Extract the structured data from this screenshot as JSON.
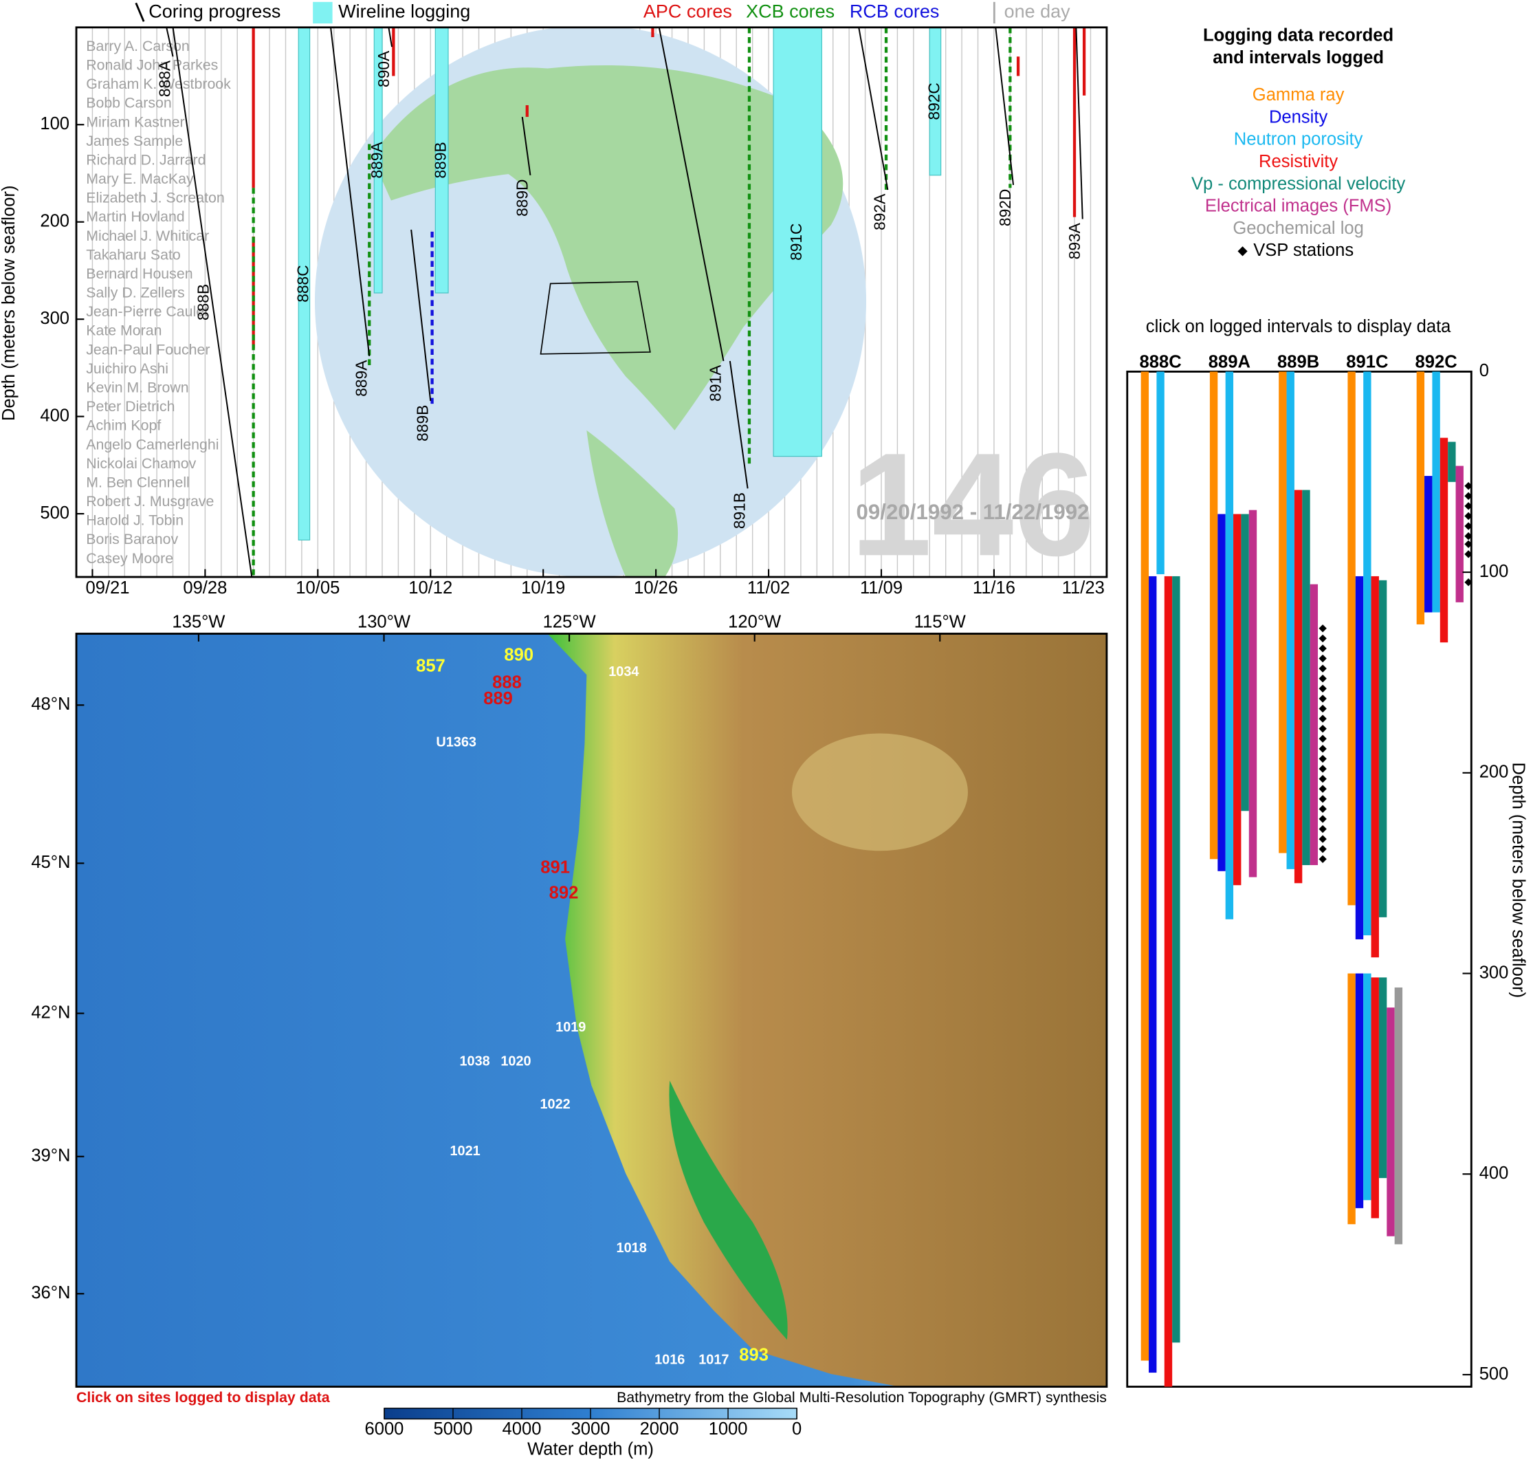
{
  "timeline": {
    "coring": {
      "name": "Coring progress",
      "color": "#000000",
      "holes": [
        {
          "label": "888A",
          "days": [
            5.6,
            6.0
          ],
          "depths": [
            0,
            30
          ]
        },
        {
          "label": "888B",
          "days": [
            6.0,
            10.9
          ],
          "depths": [
            0,
            565
          ]
        },
        {
          "label": "889A",
          "days": [
            15.8,
            18.2
          ],
          "depths": [
            0,
            338
          ]
        },
        {
          "label": "890A",
          "days": [
            19.4,
            19.6
          ],
          "depths": [
            0,
            20
          ]
        },
        {
          "label": "889B",
          "days": [
            20.8,
            22.0
          ],
          "depths": [
            208,
            384
          ]
        },
        {
          "label": "889D",
          "days": [
            27.7,
            28.2
          ],
          "depths": [
            92,
            152
          ]
        },
        {
          "label": "891A",
          "days": [
            36.2,
            40.2
          ],
          "depths": [
            0,
            343
          ]
        },
        {
          "label": "891B",
          "days": [
            40.6,
            41.7
          ],
          "depths": [
            343,
            474
          ]
        },
        {
          "label": "892A",
          "days": [
            48.6,
            50.4
          ],
          "depths": [
            0,
            167
          ]
        },
        {
          "label": "892D",
          "days": [
            57.1,
            58.2
          ],
          "depths": [
            0,
            162
          ]
        },
        {
          "label": "893A",
          "days": [
            62.1,
            62.5
          ],
          "depths": [
            0,
            197
          ]
        }
      ]
    },
    "wireline": {
      "name": "Wireline logging",
      "color": "#80f2f2",
      "holes": [
        {
          "label": "888C",
          "days": [
            13.8,
            14.5
          ],
          "top": 0,
          "bottom": 527
        },
        {
          "label": "889A",
          "days": [
            18.5,
            19.0
          ],
          "top": 0,
          "bottom": 273
        },
        {
          "label": "889B",
          "days": [
            22.3,
            23.1
          ],
          "top": 0,
          "bottom": 273
        },
        {
          "label": "891C",
          "days": [
            43.3,
            46.3
          ],
          "top": 0,
          "bottom": 441
        },
        {
          "label": "892C",
          "days": [
            53.0,
            53.7
          ],
          "top": 0,
          "bottom": 152
        }
      ]
    },
    "core_types": [
      {
        "name": "APC cores",
        "color": "#dd1111",
        "dashed": false,
        "segments": [
          {
            "day": 11.0,
            "top": 0,
            "bottom": 165
          },
          {
            "day": 11.0,
            "top": 215,
            "bottom": 330
          },
          {
            "day": 19.7,
            "top": 0,
            "bottom": 50
          },
          {
            "day": 28.0,
            "top": 80,
            "bottom": 92
          },
          {
            "day": 35.8,
            "top": 0,
            "bottom": 10
          },
          {
            "day": 58.5,
            "top": 30,
            "bottom": 50
          },
          {
            "day": 62.0,
            "top": 0,
            "bottom": 195
          },
          {
            "day": 62.6,
            "top": 0,
            "bottom": 70
          }
        ]
      },
      {
        "name": "XCB cores",
        "color": "#119011",
        "dashed": true,
        "segments": [
          {
            "day": 11.0,
            "top": 165,
            "bottom": 565
          },
          {
            "day": 18.2,
            "top": 120,
            "bottom": 350
          },
          {
            "day": 41.8,
            "top": 0,
            "bottom": 450
          },
          {
            "day": 50.3,
            "top": 0,
            "bottom": 170
          },
          {
            "day": 58.0,
            "top": 0,
            "bottom": 165
          }
        ]
      },
      {
        "name": "RCB cores",
        "color": "#1111dd",
        "dashed": true,
        "segments": [
          {
            "day": 22.1,
            "top": 210,
            "bottom": 390
          }
        ]
      }
    ],
    "one_day": "one day",
    "ylabel": "Depth (meters below seafloor)",
    "ylim": [
      0,
      565
    ],
    "yticks": [
      100,
      200,
      300,
      400,
      500
    ],
    "xlim": [
      0,
      64
    ],
    "xticks": [
      {
        "value": 1,
        "label": "09/21"
      },
      {
        "value": 8,
        "label": "09/28"
      },
      {
        "value": 15,
        "label": "10/05"
      },
      {
        "value": 22,
        "label": "10/12"
      },
      {
        "value": 29,
        "label": "10/19"
      },
      {
        "value": 36,
        "label": "10/26"
      },
      {
        "value": 43,
        "label": "11/02"
      },
      {
        "value": 50,
        "label": "11/09"
      },
      {
        "value": 57,
        "label": "11/16"
      },
      {
        "value": 64,
        "label": "11/23"
      }
    ],
    "crew": [
      "Barry A. Carson",
      "Ronald John Parkes",
      "Graham K. Westbrook",
      "Bobb Carson",
      "Miriam Kastner",
      "James Sample",
      "Richard D. Jarrard",
      "Mary E. MacKay",
      "Elizabeth J. Screaton",
      "Martin Hovland",
      "Michael J. Whiticar",
      "Takaharu Sato",
      "Bernard Housen",
      "Sally D. Zellers",
      "Jean-Pierre Caulet",
      "Kate Moran",
      "Jean-Paul Foucher",
      "Juichiro Ashi",
      "Kevin M. Brown",
      "Peter Dietrich",
      "Achim Kopf",
      "Angelo Camerlenghi",
      "Nickolai Chamov",
      "M. Ben Clennell",
      "Robert J. Musgrave",
      "Harold J. Tobin",
      "Boris Baranov",
      "Casey Moore"
    ],
    "expedition": "146",
    "dates": "09/20/1992 - 11/22/1992"
  },
  "logging": {
    "title": [
      "Logging data recorded",
      "and intervals logged"
    ],
    "tools": [
      {
        "name": "Gamma ray",
        "color": "#ff8c00"
      },
      {
        "name": "Density",
        "color": "#0a0ae6"
      },
      {
        "name": "Neutron porosity",
        "color": "#1ab8f0"
      },
      {
        "name": "Resistivity",
        "color": "#ee1111"
      },
      {
        "name": "Vp - compressional velocity",
        "color": "#108878"
      },
      {
        "name": "Electrical images (FMS)",
        "color": "#c0308c"
      },
      {
        "name": "Geochemical log",
        "color": "#999999"
      }
    ],
    "vsp_name": "VSP stations",
    "note": "click on logged intervals to display data",
    "ylabel": "Depth (meters below seafloor)",
    "ylim": [
      0,
      506
    ],
    "yticks": [
      0,
      100,
      200,
      300,
      400,
      500
    ],
    "holes": [
      {
        "name": "888C",
        "intervals": [
          [
            [
              0,
              493
            ]
          ],
          [
            [
              102,
              499
            ]
          ],
          [
            [
              0,
              101
            ]
          ],
          [
            [
              102,
              506
            ]
          ],
          [
            [
              102,
              484
            ]
          ],
          [],
          []
        ],
        "vsp": []
      },
      {
        "name": "889A",
        "intervals": [
          [
            [
              0,
              243
            ]
          ],
          [
            [
              71,
              249
            ]
          ],
          [
            [
              0,
              273
            ]
          ],
          [
            [
              71,
              256
            ]
          ],
          [
            [
              71,
              219
            ]
          ],
          [
            [
              69,
              252
            ]
          ],
          []
        ],
        "vsp": []
      },
      {
        "name": "889B",
        "intervals": [
          [
            [
              0,
              240
            ]
          ],
          [],
          [
            [
              0,
              248
            ]
          ],
          [
            [
              59,
              255
            ]
          ],
          [
            [
              59,
              246
            ]
          ],
          [
            [
              106,
              246
            ]
          ],
          []
        ],
        "vsp": [
          128,
          133,
          138,
          143,
          148,
          153,
          158,
          163,
          168,
          173,
          178,
          183,
          188,
          193,
          198,
          203,
          208,
          213,
          218,
          223,
          228,
          233,
          238,
          243
        ]
      },
      {
        "name": "891C",
        "intervals": [
          [
            [
              0,
              266
            ],
            [
              300,
              425
            ]
          ],
          [
            [
              102,
              283
            ],
            [
              300,
              417
            ]
          ],
          [
            [
              0,
              281
            ],
            [
              300,
              413
            ]
          ],
          [
            [
              102,
              292
            ],
            [
              302,
              422
            ]
          ],
          [
            [
              104,
              272
            ],
            [
              302,
              402
            ]
          ],
          [
            [
              317,
              431
            ]
          ],
          [
            [
              307,
              435
            ]
          ]
        ],
        "vsp": []
      },
      {
        "name": "892C",
        "intervals": [
          [
            [
              0,
              126
            ]
          ],
          [
            [
              52,
              120
            ]
          ],
          [
            [
              0,
              120
            ]
          ],
          [
            [
              33,
              135
            ]
          ],
          [
            [
              35,
              55
            ]
          ],
          [
            [
              47,
              115
            ]
          ],
          []
        ],
        "vsp": [
          57,
          62,
          67,
          72,
          77,
          82,
          86,
          91,
          105
        ]
      }
    ]
  },
  "map": {
    "xlim": [
      -138.3,
      -110.5
    ],
    "ylim": [
      33.9,
      49.3
    ],
    "lonticks": [
      {
        "value": -135,
        "label": "135°W"
      },
      {
        "value": -130,
        "label": "130°W"
      },
      {
        "value": -125,
        "label": "125°W"
      },
      {
        "value": -120,
        "label": "120°W"
      },
      {
        "value": -115,
        "label": "115°W"
      }
    ],
    "latticks": [
      {
        "value": 48,
        "label": "48°N"
      },
      {
        "value": 45,
        "label": "45°N"
      },
      {
        "value": 42,
        "label": "42°N"
      },
      {
        "value": 39,
        "label": "39°N"
      },
      {
        "value": 36,
        "label": "36°N"
      }
    ],
    "sites": [
      {
        "label": "857",
        "lon": -128.74,
        "lat": 48.7,
        "color": "#ffff33"
      },
      {
        "label": "890",
        "lon": -126.36,
        "lat": 48.9,
        "color": "#ffff33"
      },
      {
        "label": "888",
        "lon": -126.68,
        "lat": 48.4,
        "color": "#dd1111"
      },
      {
        "label": "889",
        "lon": -126.92,
        "lat": 48.1,
        "color": "#dd1111"
      },
      {
        "label": "U1363",
        "lon": -128.05,
        "lat": 47.3,
        "color": "#ffffff"
      },
      {
        "label": "1034",
        "lon": -123.53,
        "lat": 48.6,
        "color": "#ffffff"
      },
      {
        "label": "891",
        "lon": -125.38,
        "lat": 44.9,
        "color": "#dd1111"
      },
      {
        "label": "892",
        "lon": -125.15,
        "lat": 44.4,
        "color": "#dd1111"
      },
      {
        "label": "1019",
        "lon": -124.96,
        "lat": 41.7,
        "color": "#ffffff"
      },
      {
        "label": "1038",
        "lon": -127.55,
        "lat": 41.0,
        "color": "#ffffff"
      },
      {
        "label": "1020",
        "lon": -126.44,
        "lat": 41.0,
        "color": "#ffffff"
      },
      {
        "label": "1022",
        "lon": -125.38,
        "lat": 40.1,
        "color": "#ffffff"
      },
      {
        "label": "1021",
        "lon": -127.81,
        "lat": 39.1,
        "color": "#ffffff"
      },
      {
        "label": "1018",
        "lon": -123.32,
        "lat": 37.0,
        "color": "#ffffff"
      },
      {
        "label": "1016",
        "lon": -122.29,
        "lat": 34.5,
        "color": "#ffffff"
      },
      {
        "label": "1017",
        "lon": -121.1,
        "lat": 34.5,
        "color": "#ffffff"
      },
      {
        "label": "893",
        "lon": -120.02,
        "lat": 34.6,
        "color": "#ffff33"
      }
    ],
    "note": "Click on sites logged to display data",
    "credit": "Bathymetry from the Global Multi-Resolution Topography (GMRT) synthesis",
    "colorbar": {
      "label": "Water depth (m)",
      "xlim": [
        6000,
        0
      ],
      "ticks": [
        6000,
        5000,
        4000,
        3000,
        2000,
        1000,
        0
      ]
    }
  }
}
